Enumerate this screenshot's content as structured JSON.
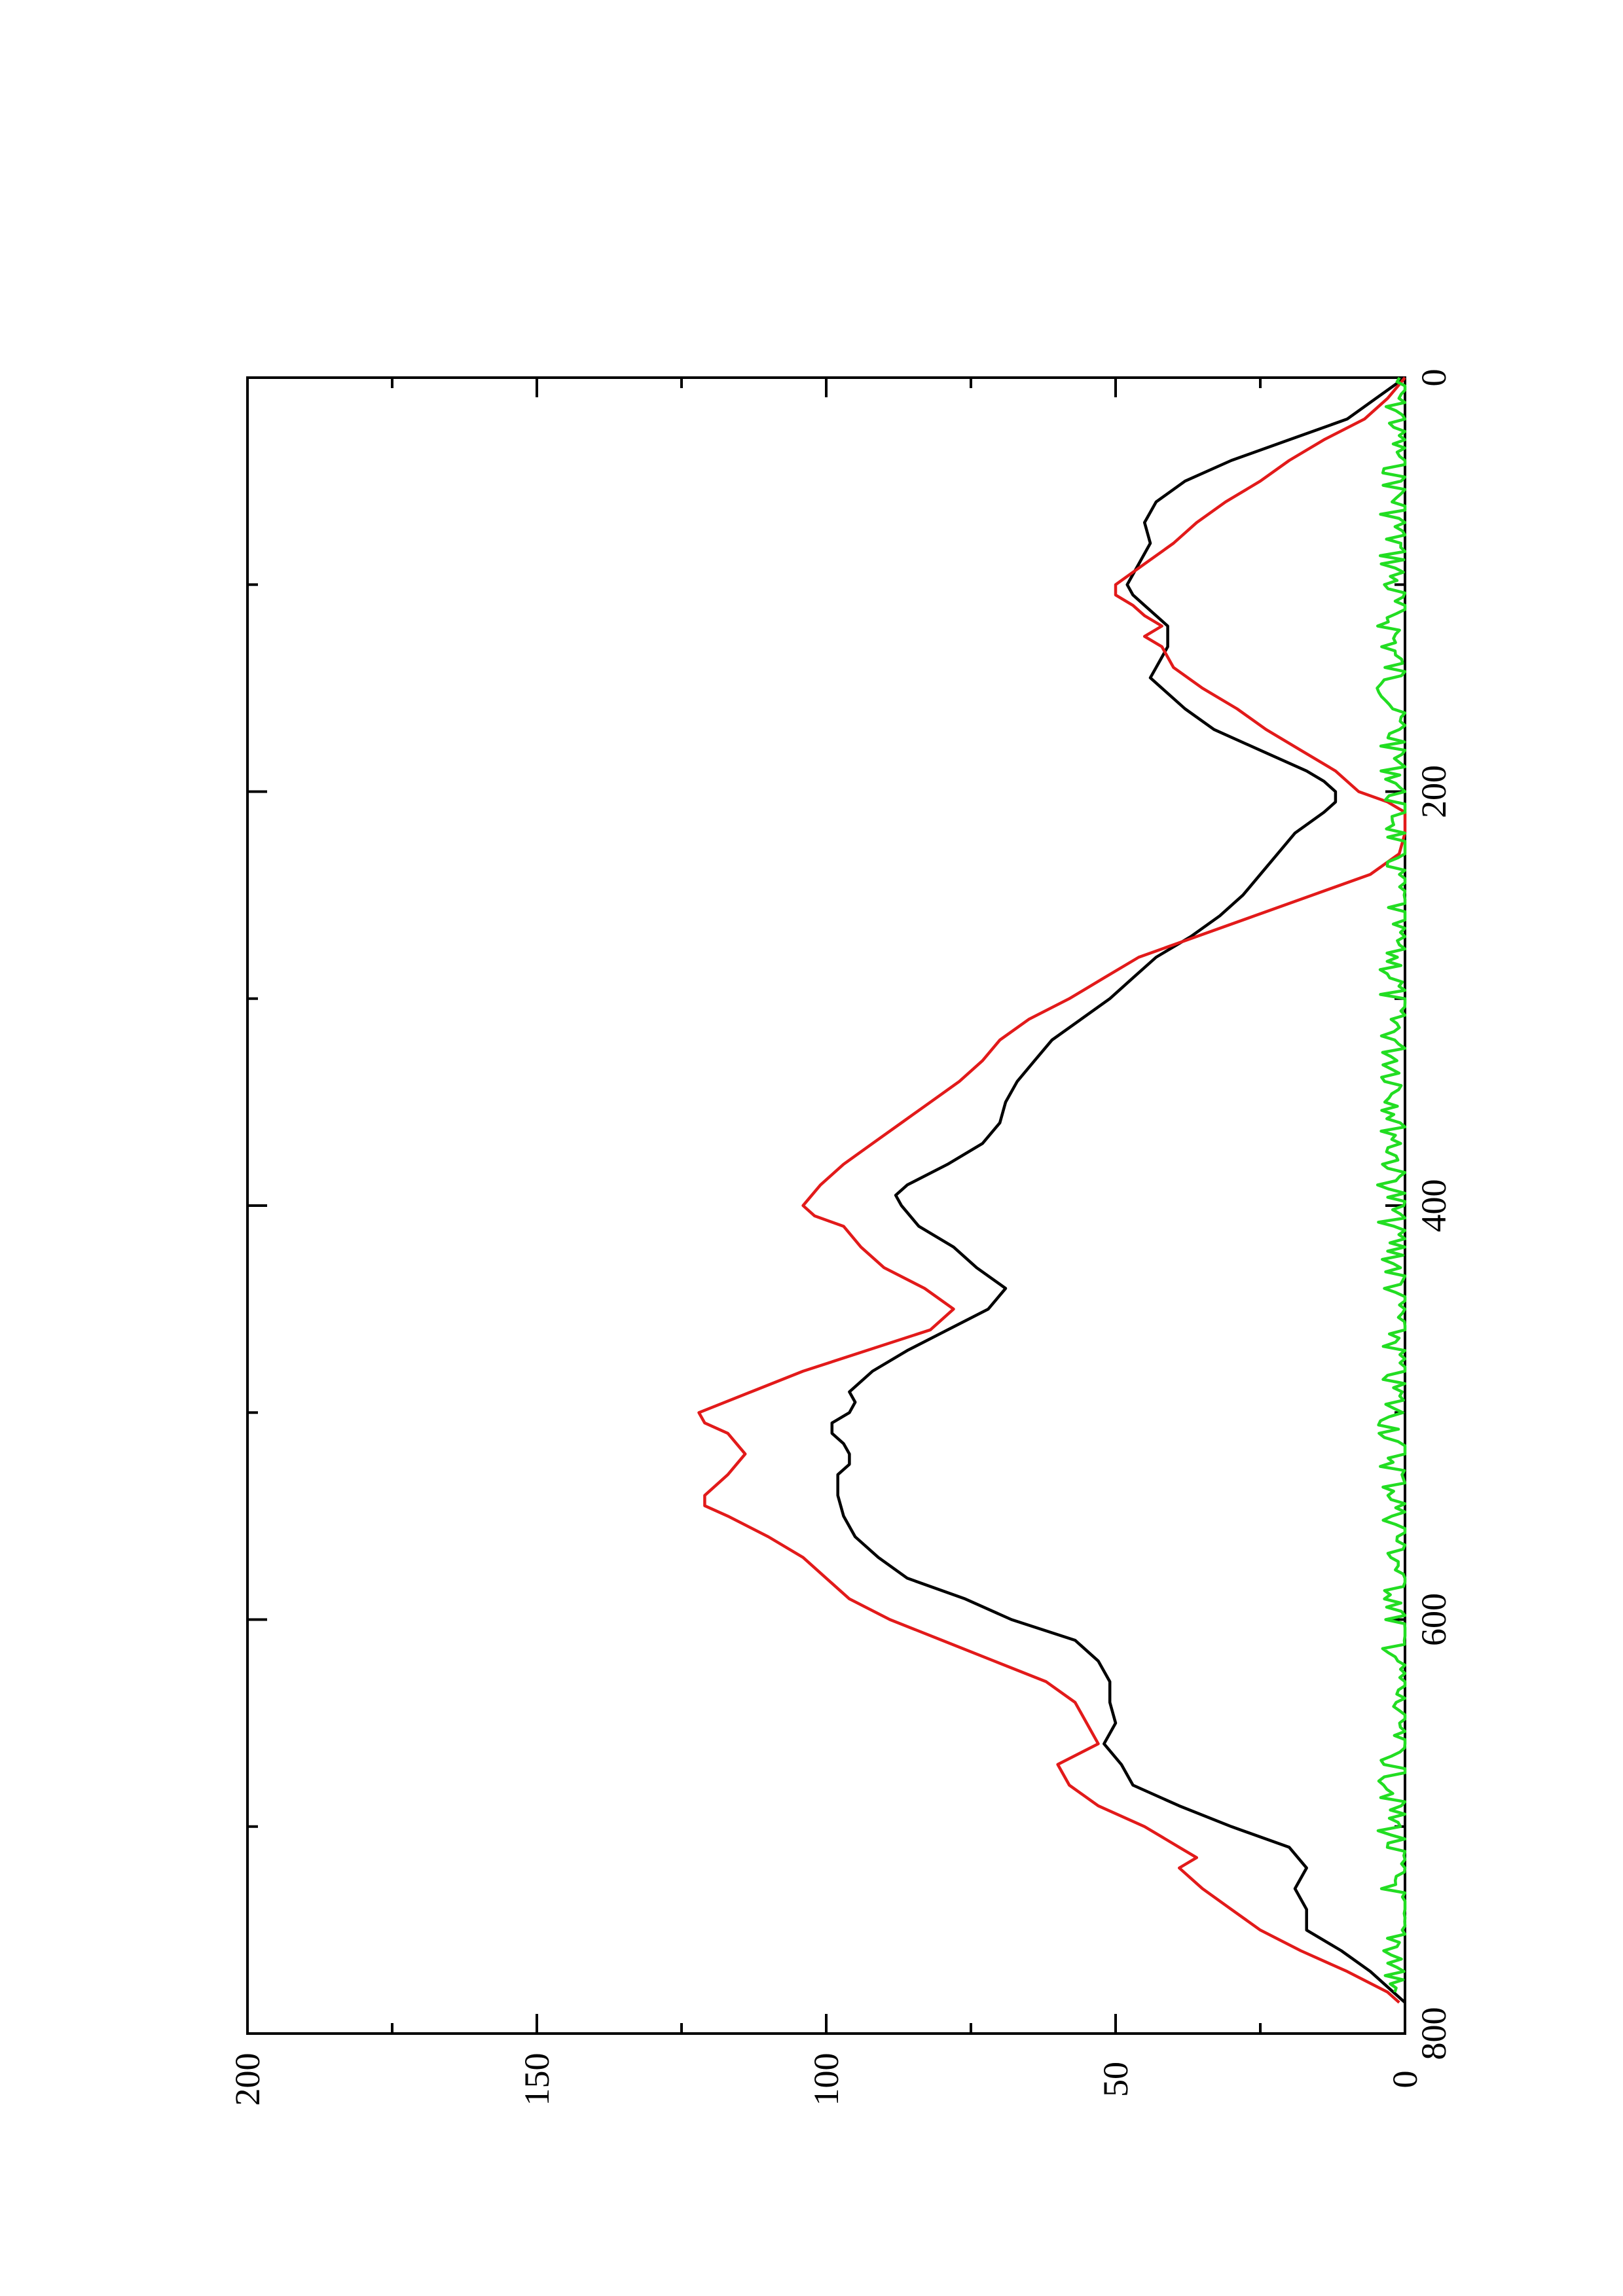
{
  "chart_data": {
    "type": "line",
    "orientation": "rotated 90° counter-clockwise",
    "title": "",
    "xlabel": "",
    "ylabel": "",
    "xlim": [
      0,
      800
    ],
    "ylim": [
      0,
      200
    ],
    "x_ticks": [
      0,
      200,
      400,
      600,
      800
    ],
    "x_minor_ticks": [
      100,
      300,
      500,
      700
    ],
    "y_ticks": [
      0,
      50,
      100,
      150,
      200
    ],
    "y_minor_ticks": [
      25,
      75,
      125,
      175
    ],
    "grid": false,
    "legend": "none",
    "series": [
      {
        "color": "#000000",
        "points": [
          [
            0,
            0
          ],
          [
            10,
            5
          ],
          [
            20,
            10
          ],
          [
            30,
            20
          ],
          [
            40,
            30
          ],
          [
            50,
            38
          ],
          [
            60,
            43
          ],
          [
            70,
            45
          ],
          [
            80,
            44
          ],
          [
            90,
            46
          ],
          [
            100,
            48
          ],
          [
            105,
            47
          ],
          [
            110,
            45
          ],
          [
            120,
            41
          ],
          [
            130,
            41
          ],
          [
            140,
            43
          ],
          [
            145,
            44
          ],
          [
            150,
            42
          ],
          [
            160,
            38
          ],
          [
            170,
            33
          ],
          [
            180,
            25
          ],
          [
            190,
            17
          ],
          [
            195,
            14
          ],
          [
            200,
            12
          ],
          [
            205,
            12
          ],
          [
            210,
            14
          ],
          [
            220,
            19
          ],
          [
            230,
            22
          ],
          [
            240,
            25
          ],
          [
            250,
            28
          ],
          [
            260,
            32
          ],
          [
            270,
            37
          ],
          [
            280,
            43
          ],
          [
            290,
            47
          ],
          [
            300,
            51
          ],
          [
            310,
            56
          ],
          [
            320,
            61
          ],
          [
            330,
            64
          ],
          [
            340,
            67
          ],
          [
            350,
            69
          ],
          [
            360,
            70
          ],
          [
            370,
            73
          ],
          [
            380,
            79
          ],
          [
            390,
            86
          ],
          [
            395,
            88
          ],
          [
            400,
            87
          ],
          [
            410,
            84
          ],
          [
            420,
            78
          ],
          [
            430,
            74
          ],
          [
            440,
            69
          ],
          [
            450,
            72
          ],
          [
            460,
            79
          ],
          [
            470,
            86
          ],
          [
            480,
            92
          ],
          [
            490,
            96
          ],
          [
            495,
            95
          ],
          [
            500,
            96
          ],
          [
            505,
            99
          ],
          [
            510,
            99
          ],
          [
            515,
            97
          ],
          [
            520,
            96
          ],
          [
            525,
            96
          ],
          [
            530,
            98
          ],
          [
            540,
            98
          ],
          [
            550,
            97
          ],
          [
            560,
            95
          ],
          [
            570,
            91
          ],
          [
            580,
            86
          ],
          [
            590,
            76
          ],
          [
            600,
            68
          ],
          [
            610,
            57
          ],
          [
            620,
            53
          ],
          [
            630,
            51
          ],
          [
            640,
            51
          ],
          [
            650,
            50
          ],
          [
            660,
            52
          ],
          [
            670,
            49
          ],
          [
            680,
            47
          ],
          [
            690,
            39
          ],
          [
            700,
            30
          ],
          [
            710,
            20
          ],
          [
            720,
            17
          ],
          [
            730,
            19
          ],
          [
            740,
            17
          ],
          [
            750,
            17
          ],
          [
            760,
            11
          ],
          [
            770,
            6
          ],
          [
            780,
            2
          ],
          [
            785,
            0
          ]
        ]
      },
      {
        "color": "#e21a1a",
        "points": [
          [
            0,
            0
          ],
          [
            10,
            3
          ],
          [
            20,
            7
          ],
          [
            30,
            14
          ],
          [
            40,
            20
          ],
          [
            50,
            25
          ],
          [
            60,
            31
          ],
          [
            70,
            36
          ],
          [
            80,
            40
          ],
          [
            90,
            45
          ],
          [
            100,
            50
          ],
          [
            105,
            50
          ],
          [
            110,
            47
          ],
          [
            115,
            45
          ],
          [
            120,
            42
          ],
          [
            125,
            45
          ],
          [
            130,
            42
          ],
          [
            140,
            40
          ],
          [
            150,
            35
          ],
          [
            160,
            29
          ],
          [
            170,
            24
          ],
          [
            180,
            18
          ],
          [
            190,
            12
          ],
          [
            200,
            8
          ],
          [
            205,
            3
          ],
          [
            210,
            0
          ],
          [
            220,
            0
          ],
          [
            230,
            1
          ],
          [
            240,
            6
          ],
          [
            250,
            16
          ],
          [
            260,
            26
          ],
          [
            270,
            36
          ],
          [
            280,
            46
          ],
          [
            290,
            52
          ],
          [
            300,
            58
          ],
          [
            310,
            65
          ],
          [
            320,
            70
          ],
          [
            330,
            73
          ],
          [
            340,
            77
          ],
          [
            350,
            82
          ],
          [
            360,
            87
          ],
          [
            370,
            92
          ],
          [
            380,
            97
          ],
          [
            390,
            101
          ],
          [
            400,
            104
          ],
          [
            405,
            102
          ],
          [
            410,
            97
          ],
          [
            420,
            94
          ],
          [
            430,
            90
          ],
          [
            440,
            83
          ],
          [
            450,
            78
          ],
          [
            460,
            82
          ],
          [
            470,
            93
          ],
          [
            480,
            104
          ],
          [
            490,
            113
          ],
          [
            500,
            122
          ],
          [
            505,
            121
          ],
          [
            510,
            117
          ],
          [
            520,
            114
          ],
          [
            530,
            117
          ],
          [
            540,
            121
          ],
          [
            545,
            121
          ],
          [
            550,
            117
          ],
          [
            560,
            110
          ],
          [
            570,
            104
          ],
          [
            580,
            100
          ],
          [
            590,
            96
          ],
          [
            600,
            89
          ],
          [
            610,
            80
          ],
          [
            620,
            71
          ],
          [
            630,
            62
          ],
          [
            640,
            57
          ],
          [
            650,
            55
          ],
          [
            660,
            53
          ],
          [
            670,
            60
          ],
          [
            680,
            58
          ],
          [
            690,
            53
          ],
          [
            700,
            45
          ],
          [
            710,
            39
          ],
          [
            715,
            36
          ],
          [
            720,
            39
          ],
          [
            730,
            35
          ],
          [
            740,
            30
          ],
          [
            750,
            25
          ],
          [
            760,
            18
          ],
          [
            770,
            10
          ],
          [
            780,
            3
          ],
          [
            785,
            1
          ]
        ]
      },
      {
        "color": "#22dd22",
        "noise_amplitude": 3,
        "points": [
          [
            0,
            1
          ],
          [
            50,
            1
          ],
          [
            100,
            2
          ],
          [
            150,
            2
          ],
          [
            200,
            1
          ],
          [
            250,
            1
          ],
          [
            300,
            2
          ],
          [
            350,
            1
          ],
          [
            400,
            2
          ],
          [
            450,
            1
          ],
          [
            500,
            2
          ],
          [
            550,
            1
          ],
          [
            600,
            1
          ],
          [
            650,
            1
          ],
          [
            700,
            2
          ],
          [
            750,
            1
          ],
          [
            780,
            2
          ]
        ]
      }
    ]
  }
}
